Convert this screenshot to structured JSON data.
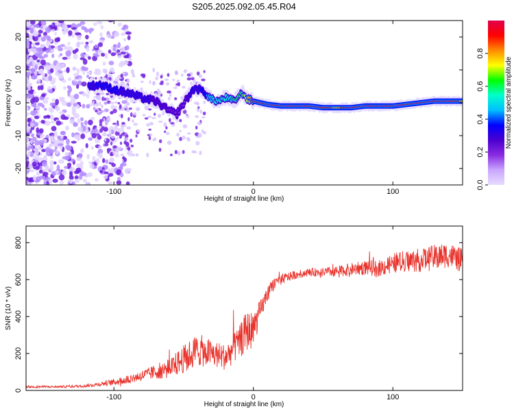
{
  "title": "S205.2025.092.05.45.R04",
  "chart_data": [
    {
      "type": "heatmap",
      "xlabel": "Height of straight line (km)",
      "ylabel": "Frequency (Hz)",
      "xlim": [
        -163,
        150
      ],
      "ylim": [
        -25,
        25
      ],
      "x_ticks": [
        -100,
        0,
        100
      ],
      "y_ticks": [
        -20,
        -10,
        0,
        10,
        20
      ],
      "colorbar": {
        "label": "Normalized spectral amplitude",
        "range": [
          0,
          1
        ],
        "ticks": [
          "0.0",
          "0.2",
          "0.4",
          "0.6",
          "0.8"
        ],
        "colors": [
          "#e8ddff",
          "#c9a6ff",
          "#8a2be2",
          "#4b00d0",
          "#0000ff",
          "#00bfff",
          "#00ffcc",
          "#00ff00",
          "#ffff00",
          "#ff8c00",
          "#ff0000",
          "#e0004a"
        ]
      },
      "ridge": {
        "x": [
          -118,
          -110,
          -100,
          -90,
          -80,
          -70,
          -62,
          -55,
          -48,
          -42,
          -36,
          -30,
          -25,
          -20,
          -14,
          -8,
          -4,
          0,
          10,
          20,
          30,
          40,
          50,
          60,
          70,
          80,
          90,
          100,
          110,
          120,
          130,
          140,
          150
        ],
        "y": [
          5,
          5.5,
          4,
          3,
          1.5,
          0.5,
          -2,
          -3.5,
          1,
          4.5,
          3.5,
          1,
          0.5,
          1.5,
          0.5,
          3,
          1,
          0.5,
          -0.5,
          -1,
          -1,
          -1,
          -1.5,
          -1.5,
          -1.5,
          -1,
          -1,
          -1,
          -0.5,
          0,
          0.5,
          0.5,
          0.5
        ],
        "amplitude": [
          0.3,
          0.35,
          0.35,
          0.3,
          0.3,
          0.25,
          0.25,
          0.2,
          0.25,
          0.3,
          0.35,
          0.5,
          0.55,
          0.5,
          0.6,
          0.65,
          0.75,
          0.9,
          0.98,
          0.98,
          0.97,
          0.97,
          0.9,
          0.8,
          0.95,
          0.97,
          0.97,
          0.97,
          0.9,
          0.95,
          0.97,
          0.95,
          0.8
        ]
      }
    },
    {
      "type": "line",
      "xlabel": "Height of straight line (km)",
      "ylabel": "SNR (10 * v/v)",
      "xlim": [
        -163,
        150
      ],
      "ylim": [
        0,
        890
      ],
      "x_ticks": [
        -100,
        0,
        100
      ],
      "y_ticks": [
        0,
        200,
        400,
        600,
        800
      ],
      "series": [
        {
          "color": "#e8322b",
          "x": [
            -163,
            -150,
            -140,
            -130,
            -120,
            -110,
            -100,
            -90,
            -80,
            -70,
            -60,
            -50,
            -40,
            -30,
            -20,
            -10,
            -5,
            0,
            5,
            10,
            15,
            20,
            25,
            30,
            40,
            50,
            60,
            70,
            80,
            90,
            100,
            110,
            120,
            130,
            140,
            150
          ],
          "y": [
            20,
            20,
            20,
            22,
            25,
            35,
            45,
            60,
            80,
            100,
            120,
            170,
            220,
            200,
            180,
            260,
            320,
            330,
            430,
            520,
            580,
            600,
            615,
            625,
            640,
            640,
            645,
            655,
            665,
            660,
            690,
            700,
            705,
            720,
            735,
            700
          ],
          "noise": [
            6,
            6,
            6,
            7,
            8,
            12,
            18,
            25,
            30,
            40,
            55,
            75,
            90,
            75,
            70,
            90,
            110,
            100,
            60,
            40,
            35,
            30,
            25,
            22,
            22,
            24,
            30,
            35,
            40,
            45,
            55,
            60,
            65,
            70,
            70,
            65
          ]
        }
      ]
    }
  ]
}
